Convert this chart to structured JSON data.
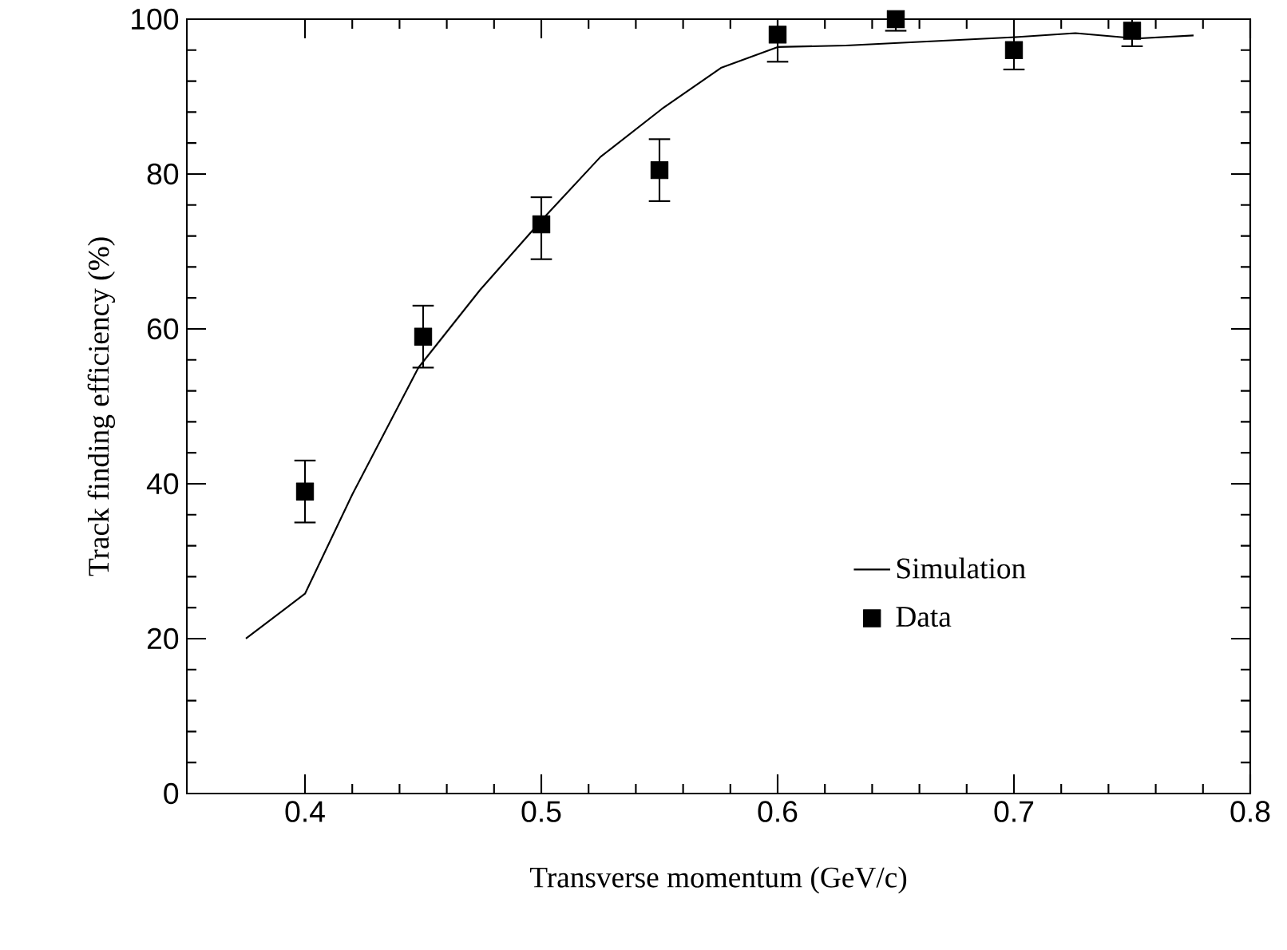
{
  "chart_data": {
    "type": "line",
    "xlabel": "Transverse momentum   (GeV/c)",
    "ylabel": "Track finding efficiency (%)",
    "xlim": [
      0.35,
      0.8
    ],
    "ylim": [
      0,
      100
    ],
    "xticks": [
      0.4,
      0.5,
      0.6,
      0.7,
      0.8
    ],
    "yticks": [
      0,
      20,
      40,
      60,
      80,
      100
    ],
    "grid": false,
    "legend": "bottom right",
    "series": [
      {
        "name": "Simulation",
        "color": "#000000",
        "marker": "none",
        "line_style": "solid",
        "x": [
          0.375,
          0.4,
          0.42,
          0.448,
          0.474,
          0.5,
          0.525,
          0.551,
          0.576,
          0.6,
          0.629,
          0.702,
          0.726,
          0.752,
          0.776
        ],
        "values": [
          20,
          25.8,
          38.6,
          55,
          65,
          74,
          82.2,
          88.4,
          93.7,
          96.4,
          96.6,
          97.7,
          98.2,
          97.5,
          97.9
        ]
      },
      {
        "name": "Data",
        "type": "scatter",
        "color": "#000000",
        "marker": "square",
        "x": [
          0.4,
          0.45,
          0.5,
          0.55,
          0.6,
          0.65,
          0.7,
          0.75
        ],
        "values": [
          39,
          59,
          73.5,
          80.5,
          98,
          100,
          96,
          98.5
        ],
        "errors": [
          [
            35,
            43
          ],
          [
            55,
            63
          ],
          [
            69,
            77
          ],
          [
            76.5,
            84.5
          ],
          [
            94.5,
            100
          ],
          [
            98.5,
            100
          ],
          [
            93.5,
            100
          ],
          [
            96.5,
            100
          ]
        ]
      }
    ]
  }
}
